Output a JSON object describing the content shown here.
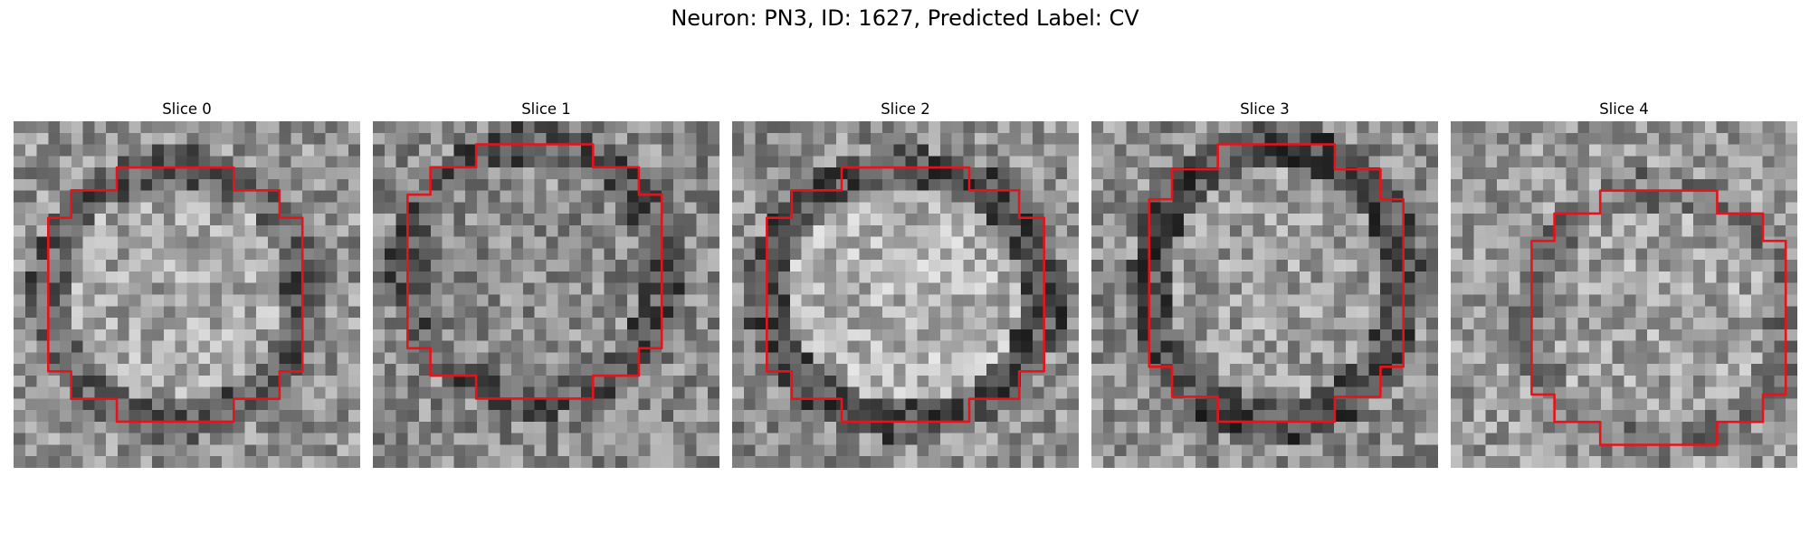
{
  "figure": {
    "title": "Neuron: PN3, ID: 1627, Predicted Label: CV"
  },
  "colors": {
    "contour": "#e8121a",
    "background": "#ffffff",
    "text": "#000000"
  },
  "slices": [
    {
      "title": "Slice 0",
      "seed": 11,
      "tone": 0.58,
      "center_brightness": 0.66,
      "ring_darkness": 0.22,
      "contour_bounds_grid": {
        "left": 1.5,
        "top": 2,
        "right": 12.5,
        "bottom": 13
      }
    },
    {
      "title": "Slice 1",
      "seed": 23,
      "tone": 0.54,
      "center_brightness": 0.55,
      "ring_darkness": 0.2,
      "contour_bounds_grid": {
        "left": 1.5,
        "top": 1,
        "right": 12.5,
        "bottom": 12
      }
    },
    {
      "title": "Slice 2",
      "seed": 37,
      "tone": 0.56,
      "center_brightness": 0.72,
      "ring_darkness": 0.24,
      "contour_bounds_grid": {
        "left": 1.5,
        "top": 2,
        "right": 13.5,
        "bottom": 13
      }
    },
    {
      "title": "Slice 3",
      "seed": 41,
      "tone": 0.55,
      "center_brightness": 0.62,
      "ring_darkness": 0.25,
      "contour_bounds_grid": {
        "left": 2.5,
        "top": 1,
        "right": 13.5,
        "bottom": 13
      }
    },
    {
      "title": "Slice 4",
      "seed": 53,
      "tone": 0.6,
      "center_brightness": 0.64,
      "ring_darkness": 0.12,
      "contour_bounds_grid": {
        "left": 3.5,
        "top": 3,
        "right": 14.5,
        "bottom": 14
      }
    }
  ]
}
